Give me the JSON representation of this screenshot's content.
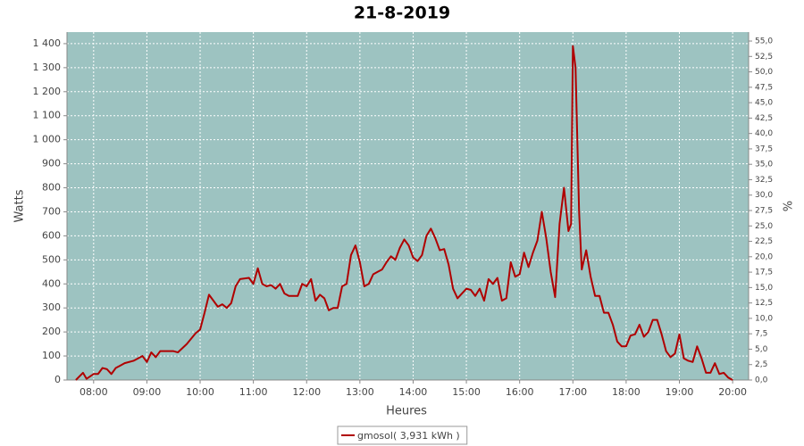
{
  "chart_data": {
    "type": "line",
    "title": "21-8-2019",
    "x_label": "Heures",
    "y_label": "Watts",
    "y2_label": "%",
    "x": [
      "07:40",
      "07:48",
      "07:52",
      "08:00",
      "08:05",
      "08:10",
      "08:15",
      "08:20",
      "08:25",
      "08:30",
      "08:35",
      "08:45",
      "08:55",
      "09:00",
      "09:05",
      "09:10",
      "09:15",
      "09:30",
      "09:35",
      "09:45",
      "09:55",
      "10:00",
      "10:05",
      "10:10",
      "10:15",
      "10:20",
      "10:25",
      "10:30",
      "10:35",
      "10:40",
      "10:45",
      "10:55",
      "11:00",
      "11:05",
      "11:10",
      "11:15",
      "11:20",
      "11:25",
      "11:30",
      "11:35",
      "11:40",
      "11:50",
      "11:55",
      "12:00",
      "12:05",
      "12:10",
      "12:15",
      "12:20",
      "12:25",
      "12:30",
      "12:35",
      "12:40",
      "12:45",
      "12:50",
      "12:55",
      "13:00",
      "13:05",
      "13:10",
      "13:15",
      "13:20",
      "13:25",
      "13:30",
      "13:35",
      "13:40",
      "13:45",
      "13:50",
      "13:55",
      "14:00",
      "14:05",
      "14:10",
      "14:15",
      "14:20",
      "14:25",
      "14:30",
      "14:35",
      "14:40",
      "14:45",
      "14:50",
      "14:55",
      "15:00",
      "15:05",
      "15:10",
      "15:15",
      "15:20",
      "15:25",
      "15:30",
      "15:35",
      "15:40",
      "15:45",
      "15:50",
      "15:55",
      "16:00",
      "16:05",
      "16:10",
      "16:15",
      "16:20",
      "16:25",
      "16:30",
      "16:35",
      "16:40",
      "16:45",
      "16:50",
      "16:55",
      "16:58",
      "17:00",
      "17:03",
      "17:07",
      "17:10",
      "17:15",
      "17:20",
      "17:25",
      "17:30",
      "17:35",
      "17:40",
      "17:45",
      "17:50",
      "17:55",
      "18:00",
      "18:05",
      "18:10",
      "18:15",
      "18:20",
      "18:25",
      "18:30",
      "18:35",
      "18:40",
      "18:45",
      "18:50",
      "18:55",
      "19:00",
      "19:05",
      "19:10",
      "19:15",
      "19:20",
      "19:25",
      "19:30",
      "19:35",
      "19:40",
      "19:45",
      "19:50",
      "19:55",
      "20:00"
    ],
    "series": [
      {
        "name": "gmosol( 3,931 kWh )",
        "color": "#b00000",
        "values": [
          0,
          30,
          5,
          25,
          25,
          50,
          45,
          25,
          50,
          60,
          70,
          80,
          100,
          75,
          115,
          95,
          120,
          120,
          115,
          150,
          195,
          210,
          280,
          355,
          330,
          305,
          315,
          300,
          320,
          390,
          420,
          425,
          400,
          465,
          400,
          390,
          395,
          380,
          400,
          360,
          350,
          350,
          400,
          390,
          420,
          330,
          355,
          340,
          290,
          300,
          300,
          390,
          400,
          520,
          560,
          490,
          390,
          400,
          440,
          450,
          460,
          490,
          515,
          500,
          550,
          585,
          560,
          510,
          495,
          520,
          600,
          630,
          590,
          540,
          545,
          480,
          380,
          340,
          360,
          380,
          375,
          350,
          380,
          330,
          420,
          400,
          425,
          330,
          340,
          490,
          430,
          440,
          530,
          470,
          530,
          580,
          700,
          590,
          450,
          345,
          650,
          800,
          620,
          650,
          1390,
          1300,
          700,
          460,
          540,
          430,
          350,
          350,
          280,
          280,
          230,
          160,
          140,
          140,
          185,
          190,
          230,
          180,
          200,
          250,
          250,
          190,
          120,
          95,
          110,
          190,
          90,
          80,
          75,
          140,
          90,
          30,
          30,
          70,
          25,
          30,
          10,
          0
        ]
      }
    ],
    "xlim": [
      "07:30",
      "20:18"
    ],
    "xticks": [
      "08:00",
      "09:00",
      "10:00",
      "11:00",
      "12:00",
      "13:00",
      "14:00",
      "15:00",
      "16:00",
      "17:00",
      "18:00",
      "19:00",
      "20:00"
    ],
    "ylim": [
      0,
      1448
    ],
    "yticks": [
      0,
      100,
      200,
      300,
      400,
      500,
      600,
      700,
      800,
      900,
      {
        "value": 1000,
        "label": "1 000"
      },
      {
        "value": 1100,
        "label": "1 100"
      },
      {
        "value": 1200,
        "label": "1 200"
      },
      {
        "value": 1300,
        "label": "1 300"
      },
      {
        "value": 1400,
        "label": "1 400"
      }
    ],
    "y2lim": [
      0,
      56.45
    ],
    "y2ticks": [
      {
        "value": 0,
        "label": "0,0"
      },
      {
        "value": 2.5,
        "label": "2,5"
      },
      {
        "value": 5,
        "label": "5,0"
      },
      {
        "value": 7.5,
        "label": "7,5"
      },
      {
        "value": 10,
        "label": "10,0"
      },
      {
        "value": 12.5,
        "label": "12,5"
      },
      {
        "value": 15,
        "label": "15,0"
      },
      {
        "value": 17.5,
        "label": "17,5"
      },
      {
        "value": 20,
        "label": "20,0"
      },
      {
        "value": 22.5,
        "label": "22,5"
      },
      {
        "value": 25,
        "label": "25,0"
      },
      {
        "value": 27.5,
        "label": "27,5"
      },
      {
        "value": 30,
        "label": "30,0"
      },
      {
        "value": 32.5,
        "label": "32,5"
      },
      {
        "value": 35,
        "label": "35,0"
      },
      {
        "value": 37.5,
        "label": "37,5"
      },
      {
        "value": 40,
        "label": "40,0"
      },
      {
        "value": 42.5,
        "label": "42,5"
      },
      {
        "value": 45,
        "label": "45,0"
      },
      {
        "value": 47.5,
        "label": "47,5"
      },
      {
        "value": 50,
        "label": "50,0"
      },
      {
        "value": 52.5,
        "label": "52,5"
      },
      {
        "value": 55,
        "label": "55,0"
      }
    ],
    "grid": true,
    "plot_background": "#9dc3c1"
  }
}
